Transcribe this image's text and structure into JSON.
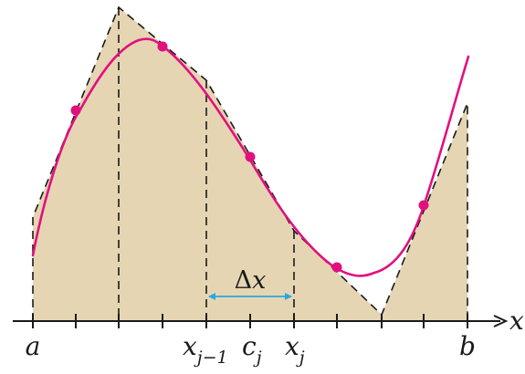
{
  "diagram": {
    "axis_label": "x",
    "left_label": "a",
    "right_label": "b",
    "xj_minus_1": {
      "base": "x",
      "sub": "j−1"
    },
    "cj": {
      "base": "c",
      "sub": "j"
    },
    "xj": {
      "base": "x",
      "sub": "j"
    },
    "delta_label": {
      "symbol": "Δ",
      "var": "x"
    }
  },
  "colors": {
    "trapezoid_fill": "#e6d5b3",
    "curve": "#e0117f",
    "point": "#e0117f",
    "outline": "#1a1a1a",
    "delta_arrow": "#29a9e0",
    "axis": "#1a1a1a"
  }
}
